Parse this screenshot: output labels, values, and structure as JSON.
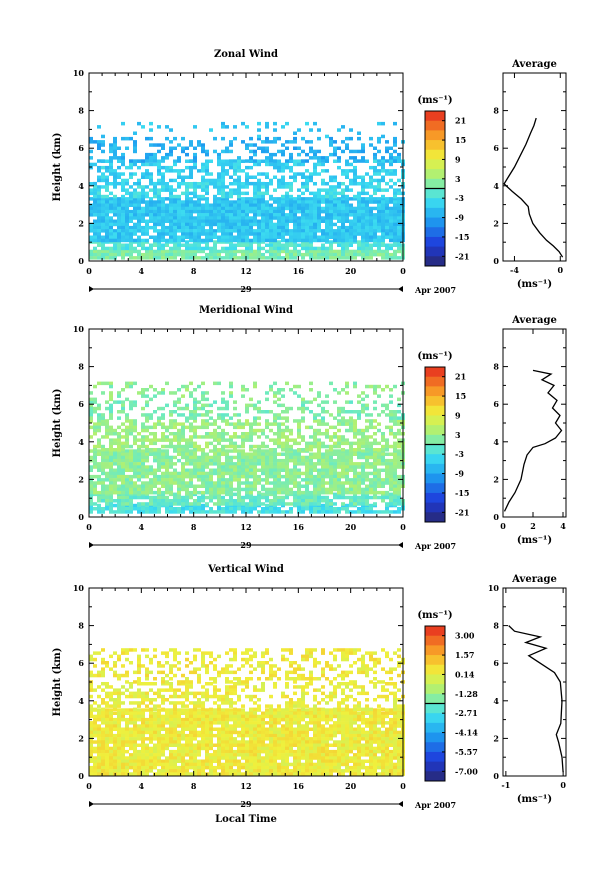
{
  "chart_data": [
    {
      "type": "heatmap",
      "title": "Zonal Wind",
      "xlabel": "",
      "ylabel": "Height (km)",
      "xlim": [
        0,
        24
      ],
      "ylim": [
        0,
        10
      ],
      "x_ticks": [
        "0",
        "4",
        "8",
        "12",
        "16",
        "20",
        "0"
      ],
      "y_ticks": [
        "0",
        "2",
        "4",
        "6",
        "8",
        "10"
      ],
      "date_day": "29",
      "date_month": "Apr 2007",
      "unit": "(ms⁻¹)",
      "colorbar_ticks": [
        "21",
        "15",
        "9",
        "3",
        "-3",
        "-9",
        "-15",
        "-21"
      ],
      "colorbar_range": [
        -24,
        24
      ],
      "layers": [
        {
          "y0": 0.2,
          "y1": 0.6,
          "value": 1,
          "coverage": 0.9
        },
        {
          "y0": 0.6,
          "y1": 1.1,
          "value": -2,
          "coverage": 0.75
        },
        {
          "y0": 1.1,
          "y1": 3.4,
          "value": -6,
          "coverage": 0.93
        },
        {
          "y0": 3.4,
          "y1": 4.2,
          "value": -4,
          "coverage": 0.6
        },
        {
          "y0": 4.2,
          "y1": 5.4,
          "value": -5,
          "coverage": 0.45
        },
        {
          "y0": 5.4,
          "y1": 6.6,
          "value": -8,
          "coverage": 0.35
        },
        {
          "y0": 6.6,
          "y1": 7.4,
          "value": -6,
          "coverage": 0.1
        }
      ],
      "profile": {
        "title": "Average",
        "xlabel": "(ms⁻¹)",
        "xlim": [
          -5,
          0.5
        ],
        "x_ticks": [
          -4,
          0
        ],
        "x_tick_labels": [
          "-4",
          "0"
        ],
        "y_ticks": [
          "0",
          "2",
          "4",
          "6",
          "8"
        ],
        "points": [
          [
            0.2,
            0.2
          ],
          [
            -0.1,
            0.5
          ],
          [
            -0.6,
            0.8
          ],
          [
            -1.2,
            1.1
          ],
          [
            -1.8,
            1.5
          ],
          [
            -2.4,
            2.0
          ],
          [
            -2.7,
            2.5
          ],
          [
            -2.8,
            2.9
          ],
          [
            -3.4,
            3.3
          ],
          [
            -4.2,
            3.7
          ],
          [
            -4.9,
            4.1
          ],
          [
            -4.5,
            4.5
          ],
          [
            -4.0,
            5.0
          ],
          [
            -3.5,
            5.6
          ],
          [
            -3.0,
            6.2
          ],
          [
            -2.6,
            6.8
          ],
          [
            -2.3,
            7.2
          ],
          [
            -2.1,
            7.6
          ]
        ]
      }
    },
    {
      "type": "heatmap",
      "title": "Meridional Wind",
      "xlabel": "",
      "ylabel": "Height (km)",
      "xlim": [
        0,
        24
      ],
      "ylim": [
        0,
        10
      ],
      "x_ticks": [
        "0",
        "4",
        "8",
        "12",
        "16",
        "20",
        "0"
      ],
      "y_ticks": [
        "0",
        "2",
        "4",
        "6",
        "8",
        "10"
      ],
      "date_day": "29",
      "date_month": "Apr 2007",
      "unit": "(ms⁻¹)",
      "colorbar_ticks": [
        "21",
        "15",
        "9",
        "3",
        "-3",
        "-9",
        "-15",
        "-21"
      ],
      "colorbar_range": [
        -24,
        24
      ],
      "layers": [
        {
          "y0": 0.2,
          "y1": 0.7,
          "value": -3,
          "coverage": 0.8
        },
        {
          "y0": 0.7,
          "y1": 1.3,
          "value": 0,
          "coverage": 0.75
        },
        {
          "y0": 1.3,
          "y1": 3.6,
          "value": 2,
          "coverage": 0.85
        },
        {
          "y0": 3.6,
          "y1": 5.2,
          "value": 3,
          "coverage": 0.6
        },
        {
          "y0": 5.2,
          "y1": 6.2,
          "value": 1,
          "coverage": 0.4
        },
        {
          "y0": 6.2,
          "y1": 7.2,
          "value": 2,
          "coverage": 0.25
        }
      ],
      "profile": {
        "title": "Average",
        "xlabel": "(ms⁻¹)",
        "xlim": [
          0,
          4.2
        ],
        "x_ticks": [
          0,
          2,
          4
        ],
        "x_tick_labels": [
          "0",
          "2",
          "4"
        ],
        "y_ticks": [
          "0",
          "2",
          "4",
          "6",
          "8"
        ],
        "points": [
          [
            0.1,
            0.3
          ],
          [
            0.4,
            0.8
          ],
          [
            0.8,
            1.3
          ],
          [
            1.2,
            2.0
          ],
          [
            1.4,
            2.8
          ],
          [
            1.6,
            3.3
          ],
          [
            2.0,
            3.7
          ],
          [
            2.8,
            3.9
          ],
          [
            3.5,
            4.2
          ],
          [
            3.9,
            4.6
          ],
          [
            3.5,
            5.0
          ],
          [
            3.8,
            5.4
          ],
          [
            3.3,
            5.8
          ],
          [
            3.6,
            6.2
          ],
          [
            3.0,
            6.6
          ],
          [
            3.4,
            7.0
          ],
          [
            2.6,
            7.3
          ],
          [
            3.2,
            7.6
          ],
          [
            2.0,
            7.8
          ]
        ]
      }
    },
    {
      "type": "heatmap",
      "title": "Vertical Wind",
      "xlabel": "Local Time",
      "ylabel": "Height (km)",
      "xlim": [
        0,
        24
      ],
      "ylim": [
        0,
        10
      ],
      "x_ticks": [
        "0",
        "4",
        "8",
        "12",
        "16",
        "20",
        "0"
      ],
      "y_ticks": [
        "0",
        "2",
        "4",
        "6",
        "8",
        "10"
      ],
      "date_day": "29",
      "date_month": "Apr 2007",
      "unit": "(ms⁻¹)",
      "colorbar_ticks": [
        "3.00",
        "1.57",
        "0.14",
        "-1.28",
        "-2.71",
        "-4.14",
        "-5.57",
        "-7.00"
      ],
      "colorbar_range": [
        -7.7,
        3.7
      ],
      "layers": [
        {
          "y0": 0.1,
          "y1": 3.6,
          "value": 0.3,
          "coverage": 0.92
        },
        {
          "y0": 3.6,
          "y1": 5.0,
          "value": 0.2,
          "coverage": 0.45
        },
        {
          "y0": 5.0,
          "y1": 6.8,
          "value": 0.3,
          "coverage": 0.35
        }
      ],
      "profile": {
        "title": "Average",
        "xlabel": "(ms⁻¹)",
        "xlim": [
          -1.05,
          0.05
        ],
        "x_ticks": [
          -1,
          0
        ],
        "x_tick_labels": [
          "-1",
          "0"
        ],
        "y_ticks": [
          "0",
          "2",
          "4",
          "6",
          "8",
          "10"
        ],
        "points": [
          [
            0,
            0.2
          ],
          [
            -0.02,
            1.0
          ],
          [
            -0.08,
            1.8
          ],
          [
            -0.12,
            2.2
          ],
          [
            -0.04,
            2.8
          ],
          [
            -0.02,
            4.0
          ],
          [
            -0.05,
            5.0
          ],
          [
            -0.15,
            5.5
          ],
          [
            -0.4,
            6.0
          ],
          [
            -0.6,
            6.4
          ],
          [
            -0.3,
            6.8
          ],
          [
            -0.65,
            7.1
          ],
          [
            -0.4,
            7.4
          ],
          [
            -0.85,
            7.7
          ],
          [
            -0.95,
            8.0
          ]
        ]
      }
    }
  ]
}
